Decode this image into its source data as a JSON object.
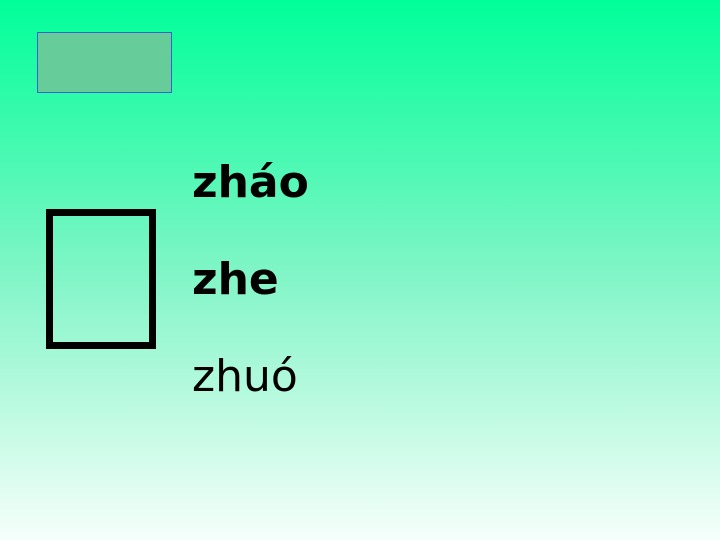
{
  "main_char": "",
  "readings": [
    {
      "lead": "",
      "pinyin": "zháo",
      "trail": "",
      "word1": "",
      "word2": ""
    },
    {
      "lead": "",
      "pinyin": "zhe",
      "trail": "",
      "word1": "",
      "word2": ""
    },
    {
      "lead": "",
      "pinyin": "zhuó",
      "trail": "",
      "word1": "",
      "word2": ""
    }
  ]
}
